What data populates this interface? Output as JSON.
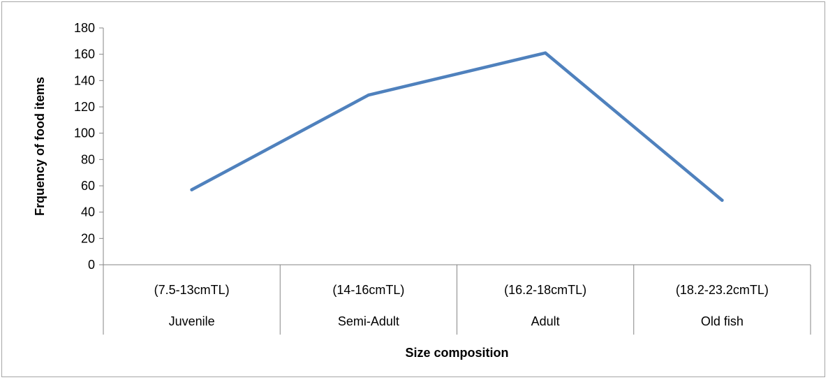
{
  "chart_data": {
    "type": "line",
    "title": "",
    "xlabel": "Size composition",
    "ylabel": "Frquency of food items",
    "ylim": [
      0,
      180
    ],
    "ytick_step": 20,
    "categories": [
      {
        "range": "(7.5-13cmTL)",
        "group": "Juvenile"
      },
      {
        "range": "(14-16cmTL)",
        "group": "Semi-Adult"
      },
      {
        "range": "(16.2-18cmTL)",
        "group": "Adult"
      },
      {
        "range": "(18.2-23.2cmTL)",
        "group": "Old fish"
      }
    ],
    "series": [
      {
        "values": [
          57,
          129,
          161,
          49
        ],
        "color": "#4f81bd"
      }
    ],
    "grid": false,
    "legend": "none"
  }
}
